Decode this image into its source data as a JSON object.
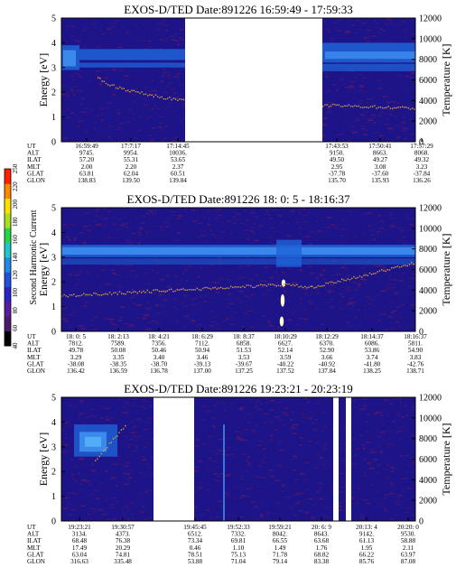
{
  "chart_data": [
    {
      "type": "heatmap",
      "title": "EXOS-D/TED   Date:891226  16:59:49 - 17:59:33",
      "ylabel": "Energy [eV]",
      "y2label": "Temperature [K]",
      "ylim": [
        0,
        5
      ],
      "y2lim": [
        0,
        12000
      ],
      "yticks": [
        "0",
        "1",
        "2",
        "3",
        "4",
        "5"
      ],
      "y2ticks": [
        "0",
        "2000",
        "4000",
        "6000",
        "8000",
        "10000",
        "12000"
      ],
      "colors": {
        "background": "#1c1488",
        "noise": "#5a1a6a",
        "band": "#1f63d8",
        "band_core": "#3f8ff0",
        "temperature_trace": "#d8a040"
      },
      "data_gaps": [
        [
          "17:14:45",
          "17:43:53"
        ]
      ],
      "ephemeris_labels": [
        "UT",
        "ALT",
        "ILAT",
        "MLT",
        "GLAT",
        "GLON"
      ],
      "ephemeris": [
        [
          "16:59:49",
          "9745.",
          "57.20",
          "2.00",
          "63.81",
          "138.83"
        ],
        [
          "17:7:17",
          "9954.",
          "55.31",
          "2.20",
          "62.04",
          "139.50"
        ],
        [
          "17:14:45",
          "10036.",
          "53.65",
          "2.37",
          "60.51",
          "139.84"
        ],
        [
          "17:43:53",
          "9150.",
          "49.50",
          "2.95",
          "-37.78",
          "135.70"
        ],
        [
          "17:50:41",
          "8663.",
          "49.27",
          "3.08",
          "-37.60",
          "135.93"
        ],
        [
          "17:57:29",
          "8068.",
          "49.32",
          "3.23",
          "-37.84",
          "136.26"
        ]
      ]
    },
    {
      "type": "heatmap",
      "title": "EXOS-D/TED   Date:891226  18: 0: 5 - 18:16:37",
      "ylabel": "Energy [eV]",
      "y2label": "Temperature [K]",
      "ylim": [
        0,
        5
      ],
      "y2lim": [
        0,
        12000
      ],
      "yticks": [
        "0",
        "1",
        "2",
        "3",
        "4",
        "5"
      ],
      "y2ticks": [
        "0",
        "2000",
        "4000",
        "6000",
        "8000",
        "10000",
        "12000"
      ],
      "colors": {
        "background": "#1c1488",
        "noise": "#5a1a6a",
        "band": "#1f63d8",
        "band_core": "#3f8ff0",
        "temperature_trace": "#d8a040",
        "spike": "#ffffd0"
      },
      "ephemeris_labels": [
        "UT",
        "ALT",
        "ILAT",
        "MLT",
        "GLAT",
        "GLON"
      ],
      "ephemeris": [
        [
          "18: 0: 5",
          "7812.",
          "49.78",
          "3.29",
          "-38.08",
          "136.42"
        ],
        [
          "18: 2:13",
          "7589.",
          "50.08",
          "3.35",
          "-38.35",
          "136.59"
        ],
        [
          "18: 4:21",
          "7356.",
          "50.46",
          "3.40",
          "-38.70",
          "136.78"
        ],
        [
          "18: 6:29",
          "7112.",
          "50.94",
          "3.46",
          "-39.13",
          "137.00"
        ],
        [
          "18: 8:37",
          "6858.",
          "51.53",
          "3.53",
          "-39.67",
          "137.25"
        ],
        [
          "18:10:29",
          "6627.",
          "52.14",
          "3.59",
          "-40.22",
          "137.52"
        ],
        [
          "18:12:29",
          "6370.",
          "52.90",
          "3.66",
          "-40.92",
          "137.84"
        ],
        [
          "18:14:37",
          "6086.",
          "53.86",
          "3.74",
          "-41.80",
          "138.25"
        ],
        [
          "18:16:37",
          "5811.",
          "54.90",
          "3.83",
          "-42.76",
          "138.71"
        ]
      ]
    },
    {
      "type": "heatmap",
      "title": "EXOS-D/TED   Date:891226  19:23:21 - 20:23:19",
      "ylabel": "Energy [eV]",
      "y2label": "Temperature [K]",
      "ylim": [
        0,
        5
      ],
      "y2lim": [
        0,
        12000
      ],
      "yticks": [
        "0",
        "1",
        "2",
        "3",
        "4",
        "5"
      ],
      "y2ticks": [
        "0",
        "2000",
        "4000",
        "6000",
        "8000",
        "10000",
        "12000"
      ],
      "colors": {
        "background": "#1c1488",
        "noise": "#5a1a6a",
        "band": "#1f63d8",
        "band_core": "#3f8ff0",
        "temperature_trace": "#d8a040"
      },
      "data_gaps": [
        [
          "19:30:57",
          "19:45:45"
        ],
        [
          "20:6:9",
          "20:13:4"
        ]
      ],
      "ephemeris_labels": [
        "UT",
        "ALT",
        "ILAT",
        "MLT",
        "GLAT",
        "GLON"
      ],
      "ephemeris": [
        [
          "19:23:21",
          "3134.",
          "68.48",
          "17.49",
          "63.04",
          "316.63"
        ],
        [
          "19:30:57",
          "4373.",
          "76.38",
          "20.29",
          "74.81",
          "335.48"
        ],
        [
          "19:45:45",
          "6512.",
          "73.34",
          "0.46",
          "78.51",
          "53.88"
        ],
        [
          "19:52:33",
          "7332.",
          "69.81",
          "1.10",
          "75.13",
          "71.04"
        ],
        [
          "19:59:21",
          "8042.",
          "66.55",
          "1.49",
          "71.78",
          "79.14"
        ],
        [
          "20: 6: 9",
          "8643.",
          "63.68",
          "1.76",
          "68.82",
          "83.38"
        ],
        [
          "20:13: 4",
          "9142.",
          "61.13",
          "1.95",
          "66.22",
          "85.76"
        ],
        [
          "20:20: 0",
          "9530.",
          "58.88",
          "2.11",
          "63.97",
          "87.08"
        ]
      ]
    }
  ],
  "colorbar": {
    "label": "Second Harmonic Current",
    "ticks": [
      "40",
      "60",
      "80",
      "100",
      "120",
      "140",
      "160",
      "180",
      "200",
      "220",
      "250"
    ],
    "colors": [
      "#000000",
      "#4b1a6e",
      "#5a1aa0",
      "#2a24c8",
      "#1f50e0",
      "#1f8ae8",
      "#20c8c8",
      "#2ad44a",
      "#a8e020",
      "#ffe000",
      "#ff8800",
      "#ff2000"
    ]
  }
}
